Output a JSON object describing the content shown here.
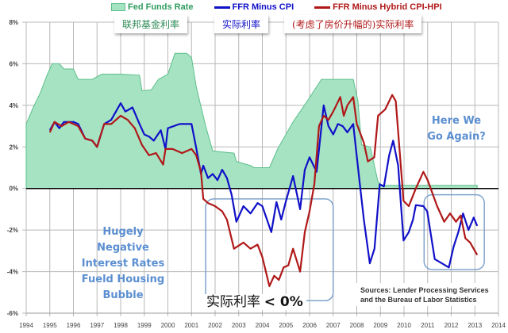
{
  "chart_data": {
    "type": "line",
    "title": "",
    "xlabel": "",
    "ylabel": "",
    "xlim": [
      1994,
      2014
    ],
    "ylim": [
      -6,
      8
    ],
    "x_ticks": [
      "1994",
      "1995",
      "1996",
      "1997",
      "1998",
      "1999",
      "2000",
      "2001",
      "2002",
      "2003",
      "2004",
      "2005",
      "2006",
      "2007",
      "2008",
      "2009",
      "2010",
      "2011",
      "2012",
      "2013",
      "2014"
    ],
    "y_ticks": [
      {
        "v": 8,
        "label": "8%"
      },
      {
        "v": 6,
        "label": "6%"
      },
      {
        "v": 4,
        "label": "4%"
      },
      {
        "v": 2,
        "label": "2%"
      },
      {
        "v": 0,
        "label": "0%"
      },
      {
        "v": -2,
        "label": "-2%"
      },
      {
        "v": -4,
        "label": "-4%"
      },
      {
        "v": -6,
        "label": "-6%"
      }
    ],
    "grid": true,
    "legend_position": "top",
    "series": [
      {
        "name": "Fed Funds Rate",
        "label_cn": "联邦基金利率",
        "kind": "area",
        "color": "#a6e3c3",
        "stroke": "#5cbf8a",
        "points": [
          [
            1994.0,
            3.1
          ],
          [
            1994.3,
            3.9
          ],
          [
            1994.6,
            4.6
          ],
          [
            1994.9,
            5.5
          ],
          [
            1995.1,
            6.0
          ],
          [
            1995.4,
            6.0
          ],
          [
            1995.6,
            5.75
          ],
          [
            1996.0,
            5.75
          ],
          [
            1996.2,
            5.25
          ],
          [
            1996.8,
            5.25
          ],
          [
            1997.2,
            5.5
          ],
          [
            1998.0,
            5.5
          ],
          [
            1998.8,
            5.45
          ],
          [
            1998.9,
            4.7
          ],
          [
            1999.3,
            4.75
          ],
          [
            1999.6,
            5.25
          ],
          [
            2000.0,
            5.5
          ],
          [
            2000.3,
            6.5
          ],
          [
            2000.8,
            6.5
          ],
          [
            2001.0,
            6.3
          ],
          [
            2001.2,
            4.9
          ],
          [
            2001.6,
            3.0
          ],
          [
            2001.9,
            1.8
          ],
          [
            2002.8,
            1.7
          ],
          [
            2002.9,
            1.3
          ],
          [
            2003.5,
            1.1
          ],
          [
            2003.66,
            1.0
          ],
          [
            2004.3,
            1.0
          ],
          [
            2004.65,
            1.9
          ],
          [
            2005.3,
            3.2
          ],
          [
            2005.9,
            4.2
          ],
          [
            2006.5,
            5.25
          ],
          [
            2007.5,
            5.25
          ],
          [
            2007.85,
            5.25
          ],
          [
            2008.05,
            4.2
          ],
          [
            2008.2,
            2.1
          ],
          [
            2008.57,
            2.0
          ],
          [
            2008.9,
            0.3
          ],
          [
            2009.1,
            0.15
          ],
          [
            2013.1,
            0.15
          ]
        ]
      },
      {
        "name": "FFR Minus CPI",
        "label_cn": "实际利率",
        "kind": "line",
        "color": "#1010c8",
        "points": [
          [
            1995.0,
            2.8
          ],
          [
            1995.2,
            3.2
          ],
          [
            1995.4,
            2.9
          ],
          [
            1995.6,
            3.2
          ],
          [
            1996.0,
            3.2
          ],
          [
            1996.2,
            3.1
          ],
          [
            1996.5,
            2.4
          ],
          [
            1996.8,
            2.3
          ],
          [
            1997.0,
            2.0
          ],
          [
            1997.3,
            3.1
          ],
          [
            1997.6,
            3.3
          ],
          [
            1998.0,
            4.1
          ],
          [
            1998.2,
            3.7
          ],
          [
            1998.5,
            3.9
          ],
          [
            1998.8,
            3.1
          ],
          [
            1999.0,
            2.6
          ],
          [
            1999.2,
            2.5
          ],
          [
            1999.4,
            2.3
          ],
          [
            1999.7,
            2.8
          ],
          [
            1999.9,
            1.9
          ],
          [
            2000.0,
            2.9
          ],
          [
            2000.5,
            3.1
          ],
          [
            2001.0,
            3.1
          ],
          [
            2001.2,
            1.95
          ],
          [
            2001.4,
            0.7
          ],
          [
            2001.5,
            1.1
          ],
          [
            2001.7,
            0.5
          ],
          [
            2001.9,
            0.7
          ],
          [
            2002.1,
            0.4
          ],
          [
            2002.3,
            0.9
          ],
          [
            2002.5,
            0.5
          ],
          [
            2002.7,
            -0.3
          ],
          [
            2002.9,
            -1.6
          ],
          [
            2003.2,
            -0.85
          ],
          [
            2003.5,
            -1.2
          ],
          [
            2003.8,
            -0.7
          ],
          [
            2004.0,
            -0.85
          ],
          [
            2004.38,
            -2.1
          ],
          [
            2004.6,
            -0.65
          ],
          [
            2004.8,
            -1.5
          ],
          [
            2005.0,
            -0.6
          ],
          [
            2005.3,
            0.6
          ],
          [
            2005.6,
            -1.0
          ],
          [
            2005.8,
            0.9
          ],
          [
            2006.0,
            1.5
          ],
          [
            2006.3,
            0.8
          ],
          [
            2006.6,
            4.0
          ],
          [
            2006.8,
            3.0
          ],
          [
            2007.0,
            2.6
          ],
          [
            2007.2,
            3.1
          ],
          [
            2007.4,
            3.0
          ],
          [
            2007.6,
            2.7
          ],
          [
            2007.85,
            3.1
          ],
          [
            2008.1,
            0.5
          ],
          [
            2008.3,
            -1.5
          ],
          [
            2008.55,
            -3.6
          ],
          [
            2008.75,
            -2.9
          ],
          [
            2008.97,
            0.2
          ],
          [
            2009.15,
            0.1
          ],
          [
            2009.37,
            1.6
          ],
          [
            2009.54,
            2.3
          ],
          [
            2009.75,
            1.1
          ],
          [
            2009.98,
            -2.5
          ],
          [
            2010.2,
            -2.1
          ],
          [
            2010.38,
            -1.5
          ],
          [
            2010.5,
            -0.8
          ],
          [
            2010.82,
            -0.85
          ],
          [
            2010.98,
            -1.1
          ],
          [
            2011.3,
            -3.4
          ],
          [
            2011.9,
            -3.8
          ],
          [
            2012.1,
            -2.8
          ],
          [
            2012.3,
            -2.1
          ],
          [
            2012.5,
            -1.2
          ],
          [
            2012.73,
            -2.0
          ],
          [
            2012.95,
            -1.4
          ],
          [
            2013.1,
            -1.8
          ]
        ]
      },
      {
        "name": "FFR Minus Hybrid CPI-HPI",
        "label_cn": "(考虑了房价升幅的)实际利率",
        "kind": "line",
        "color": "#b01818",
        "points": [
          [
            1995.0,
            2.7
          ],
          [
            1995.2,
            3.2
          ],
          [
            1995.5,
            3.0
          ],
          [
            1995.8,
            3.2
          ],
          [
            1996.0,
            3.1
          ],
          [
            1996.2,
            3.0
          ],
          [
            1996.5,
            2.4
          ],
          [
            1996.8,
            2.3
          ],
          [
            1997.0,
            2.0
          ],
          [
            1997.3,
            3.1
          ],
          [
            1997.6,
            3.1
          ],
          [
            1998.0,
            3.5
          ],
          [
            1998.3,
            3.3
          ],
          [
            1998.6,
            2.9
          ],
          [
            1998.9,
            2.1
          ],
          [
            1999.2,
            1.6
          ],
          [
            1999.5,
            1.7
          ],
          [
            1999.8,
            1.15
          ],
          [
            1999.9,
            1.9
          ],
          [
            2000.2,
            1.9
          ],
          [
            2000.6,
            1.7
          ],
          [
            2001.0,
            1.9
          ],
          [
            2001.2,
            1.6
          ],
          [
            2001.4,
            0.8
          ],
          [
            2001.5,
            -0.5
          ],
          [
            2001.7,
            -0.7
          ],
          [
            2002.0,
            -0.85
          ],
          [
            2002.3,
            -1.1
          ],
          [
            2002.5,
            -1.5
          ],
          [
            2002.8,
            -2.9
          ],
          [
            2003.2,
            -2.6
          ],
          [
            2003.5,
            -2.9
          ],
          [
            2003.8,
            -2.7
          ],
          [
            2004.0,
            -3.3
          ],
          [
            2004.3,
            -4.7
          ],
          [
            2004.5,
            -4.2
          ],
          [
            2004.7,
            -4.4
          ],
          [
            2004.9,
            -3.8
          ],
          [
            2005.1,
            -3.7
          ],
          [
            2005.3,
            -2.9
          ],
          [
            2005.6,
            -4.0
          ],
          [
            2005.8,
            -2.1
          ],
          [
            2006.0,
            -1.1
          ],
          [
            2006.2,
            0.2
          ],
          [
            2006.4,
            3.0
          ],
          [
            2006.6,
            3.5
          ],
          [
            2006.8,
            3.3
          ],
          [
            2007.0,
            3.7
          ],
          [
            2007.3,
            4.4
          ],
          [
            2007.45,
            3.5
          ],
          [
            2007.6,
            4.0
          ],
          [
            2007.85,
            4.4
          ],
          [
            2008.0,
            3.1
          ],
          [
            2008.3,
            2.2
          ],
          [
            2008.47,
            1.3
          ],
          [
            2008.74,
            1.5
          ],
          [
            2008.9,
            3.5
          ],
          [
            2009.2,
            3.8
          ],
          [
            2009.5,
            4.5
          ],
          [
            2009.65,
            4.2
          ],
          [
            2009.98,
            -0.6
          ],
          [
            2010.2,
            -0.85
          ],
          [
            2010.5,
            0.0
          ],
          [
            2010.82,
            0.8
          ],
          [
            2011.0,
            0.4
          ],
          [
            2011.4,
            -0.85
          ],
          [
            2011.7,
            -1.6
          ],
          [
            2011.95,
            -1.2
          ],
          [
            2012.2,
            -1.6
          ],
          [
            2012.4,
            -1.3
          ],
          [
            2012.6,
            -2.4
          ],
          [
            2012.8,
            -2.6
          ],
          [
            2013.1,
            -3.2
          ]
        ]
      }
    ],
    "annotations": {
      "left_note": [
        "Hugely",
        "Negative",
        "Interest Rates",
        "Fueld Housing",
        "Bubble"
      ],
      "right_note": [
        "Here We",
        "Go Again?"
      ],
      "below_zero_cn": "实际利率",
      "below_zero_rel": "< 0%",
      "sources": [
        "Sources: Lender Processing Services",
        "and the Bureau of Labor Statistics"
      ],
      "highlight_boxes": [
        {
          "x": [
            2001.6,
            2007.0
          ],
          "y": [
            -5.4,
            -0.5
          ]
        },
        {
          "x": [
            2010.85,
            2013.4
          ],
          "y": [
            -3.9,
            -0.3
          ]
        }
      ]
    }
  }
}
